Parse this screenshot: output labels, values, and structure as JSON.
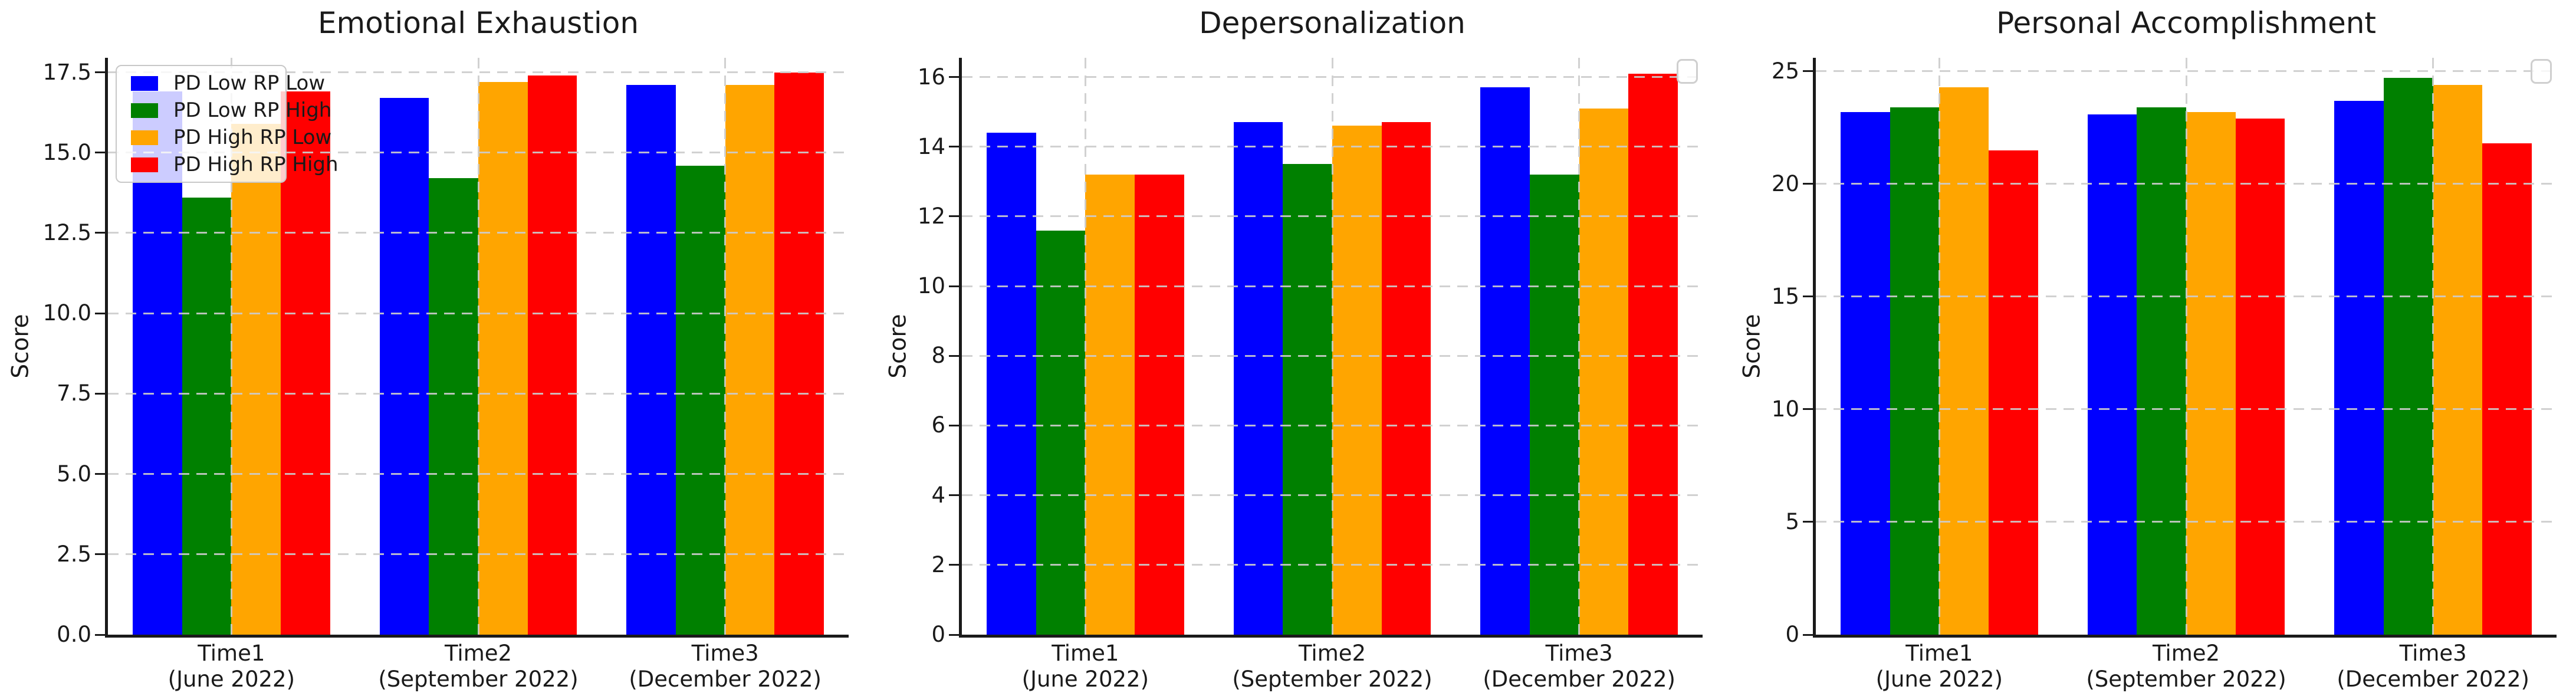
{
  "figure": {
    "background": "#ffffff"
  },
  "series_colors": {
    "blue": "#0000ff",
    "green": "#008000",
    "orange": "#ffa500",
    "red": "#ff0000"
  },
  "chart_data": [
    {
      "type": "bar",
      "title": "Emotional Exhaustion",
      "ylabel": "Score",
      "categories": [
        "Time1",
        "Time2",
        "Time3"
      ],
      "category_sublabels": [
        "(June 2022)",
        "(September 2022)",
        "(December 2022)"
      ],
      "series": [
        {
          "name": "PD Low RP Low",
          "color": "#0000ff",
          "values": [
            16.9,
            16.7,
            17.1
          ]
        },
        {
          "name": "PD Low RP High",
          "color": "#008000",
          "values": [
            13.6,
            14.2,
            14.6
          ]
        },
        {
          "name": "PD High RP Low",
          "color": "#ffa500",
          "values": [
            15.9,
            17.2,
            17.1
          ]
        },
        {
          "name": "PD High RP High",
          "color": "#ff0000",
          "values": [
            16.9,
            17.4,
            17.5
          ]
        }
      ],
      "ylim": [
        0,
        17.95
      ],
      "ytick_step": 2.5,
      "ytick_labels": [
        "0.0",
        "2.5",
        "5.0",
        "7.5",
        "10.0",
        "12.5",
        "15.0",
        "17.5"
      ],
      "grid": "dashed gray, horizontal at ticks + vertical at group centers",
      "legend": {
        "visible": true,
        "location": "upper left"
      }
    },
    {
      "type": "bar",
      "title": "Depersonalization",
      "ylabel": "Score",
      "categories": [
        "Time1",
        "Time2",
        "Time3"
      ],
      "category_sublabels": [
        "(June 2022)",
        "(September 2022)",
        "(December 2022)"
      ],
      "series": [
        {
          "name": "PD Low RP Low",
          "color": "#0000ff",
          "values": [
            14.4,
            14.7,
            15.7
          ]
        },
        {
          "name": "PD Low RP High",
          "color": "#008000",
          "values": [
            11.6,
            13.5,
            13.2
          ]
        },
        {
          "name": "PD High RP Low",
          "color": "#ffa500",
          "values": [
            13.2,
            14.6,
            15.1
          ]
        },
        {
          "name": "PD High RP High",
          "color": "#ff0000",
          "values": [
            13.2,
            14.7,
            16.1
          ]
        }
      ],
      "ylim": [
        0,
        16.55
      ],
      "ytick_step": 2,
      "ytick_labels": [
        "0",
        "2",
        "4",
        "6",
        "8",
        "10",
        "12",
        "14",
        "16"
      ],
      "grid": "dashed gray, horizontal at ticks + vertical at group centers",
      "legend": {
        "visible": false,
        "empty_box": true,
        "location": "upper right"
      }
    },
    {
      "type": "bar",
      "title": "Personal Accomplishment",
      "ylabel": "Score",
      "categories": [
        "Time1",
        "Time2",
        "Time3"
      ],
      "category_sublabels": [
        "(June 2022)",
        "(September 2022)",
        "(December 2022)"
      ],
      "series": [
        {
          "name": "PD Low RP Low",
          "color": "#0000ff",
          "values": [
            23.2,
            23.1,
            23.7
          ]
        },
        {
          "name": "PD Low RP High",
          "color": "#008000",
          "values": [
            23.4,
            23.4,
            24.7
          ]
        },
        {
          "name": "PD High RP Low",
          "color": "#ffa500",
          "values": [
            24.3,
            23.2,
            24.4
          ]
        },
        {
          "name": "PD High RP High",
          "color": "#ff0000",
          "values": [
            21.5,
            22.9,
            21.8
          ]
        }
      ],
      "ylim": [
        0,
        25.6
      ],
      "ytick_step": 5,
      "ytick_labels": [
        "0",
        "5",
        "10",
        "15",
        "20",
        "25"
      ],
      "grid": "dashed gray, horizontal at ticks + vertical at group centers",
      "legend": {
        "visible": false,
        "empty_box": true,
        "location": "upper right"
      }
    }
  ]
}
